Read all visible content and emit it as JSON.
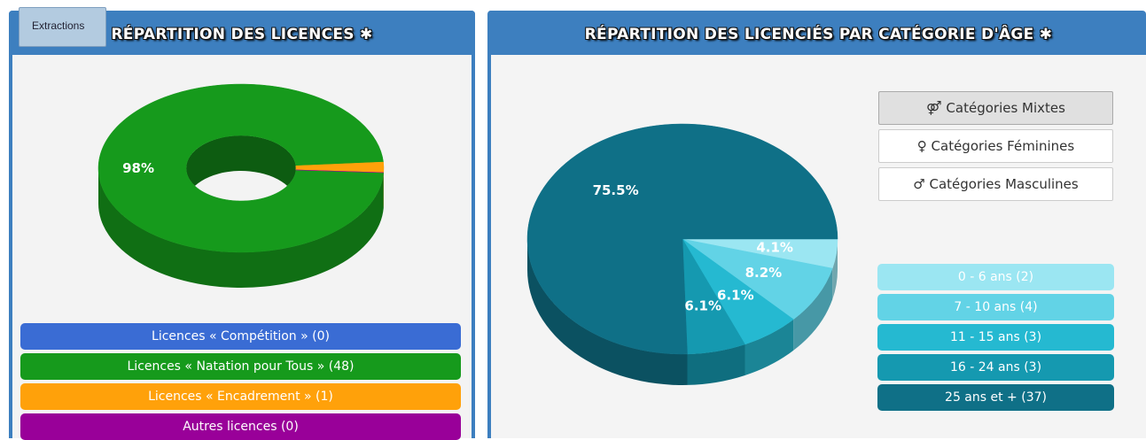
{
  "toolbar": {
    "button": "Extractions"
  },
  "chart_data": [
    {
      "type": "donut",
      "title": "RÉPARTITION DES LICENCES ✱",
      "categories": [
        "Licences « Compétition » (0)",
        "Licences « Natation pour Tous » (48)",
        "Licences « Encadrement » (1)",
        "Autres licences (0)"
      ],
      "values": [
        0,
        98,
        2,
        0
      ],
      "value_labels": [
        null,
        "98%",
        null,
        null
      ],
      "colors": [
        "#3a6cd4",
        "#169a1c",
        "#ffa10a",
        "#990099"
      ]
    },
    {
      "type": "pie",
      "title": "RÉPARTITION DES LICENCIÉS PAR CATÉGORIE D'ÂGE ✱",
      "categories": [
        "0 - 6 ans (2)",
        "7 - 10 ans (4)",
        "11 - 15 ans (3)",
        "16 - 24 ans (3)",
        "25 ans et + (37)"
      ],
      "values": [
        4.1,
        8.2,
        6.1,
        6.1,
        75.5
      ],
      "value_labels": [
        "4.1%",
        "8.2%",
        "6.1%",
        "6.1%",
        "75.5%"
      ],
      "colors": [
        "#9be6f2",
        "#62d3e6",
        "#25b9d1",
        "#1599b0",
        "#0f7087"
      ]
    }
  ],
  "filters": [
    "⚤ Catégories Mixtes",
    "♀ Catégories Féminines",
    "♂ Catégories Masculines"
  ]
}
